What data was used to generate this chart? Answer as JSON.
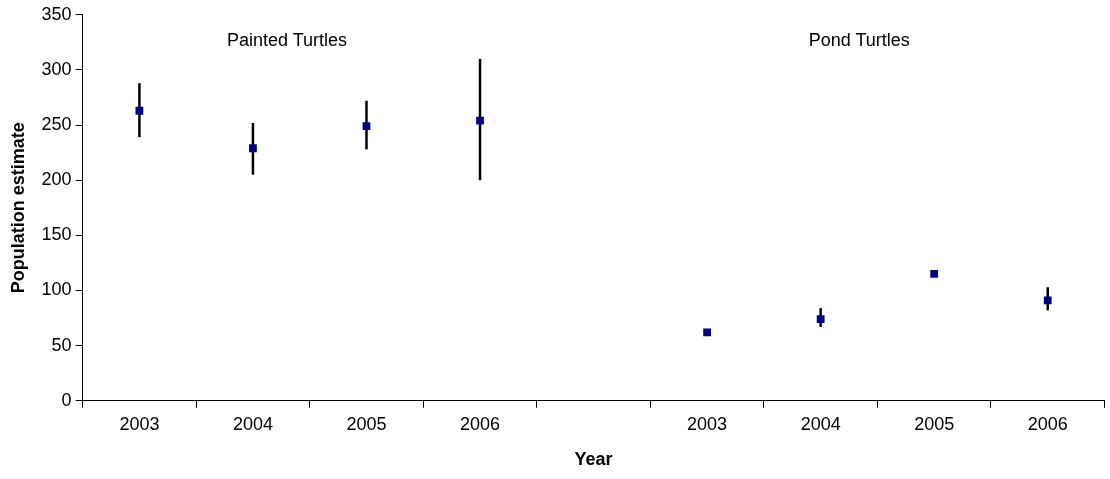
{
  "chart_data": {
    "type": "scatter",
    "xlabel": "Year",
    "ylabel": "Population estimate",
    "categories": [
      "2003",
      "2004",
      "2005",
      "2006",
      null,
      "2003",
      "2004",
      "2005",
      "2006"
    ],
    "series": [
      {
        "color": "#000080",
        "values": [
          263,
          229,
          249,
          254,
          null,
          62,
          74,
          115,
          91
        ],
        "errors": [
          [
            239,
            288
          ],
          [
            205,
            252
          ],
          [
            228,
            272
          ],
          [
            200,
            310
          ],
          null,
          null,
          [
            67,
            84
          ],
          null,
          [
            82,
            103
          ]
        ]
      }
    ],
    "annotations": [
      "Painted Turtles",
      "Pond Turtles"
    ],
    "ylim": [
      0,
      350
    ],
    "yticks": [
      0,
      50,
      100,
      150,
      200,
      250,
      300,
      350
    ],
    "grid": false,
    "legend": false,
    "marker": "square"
  }
}
